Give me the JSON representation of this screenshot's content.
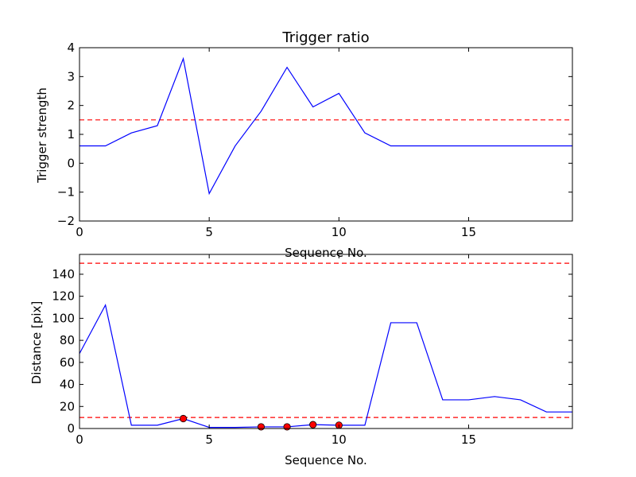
{
  "chart_data": [
    {
      "type": "line",
      "title": "Trigger ratio",
      "xlabel": "Sequence No.",
      "ylabel": "Trigger strength",
      "xlim": [
        0,
        19
      ],
      "ylim": [
        -2,
        4
      ],
      "xticks": [
        0,
        5,
        10,
        15
      ],
      "yticks": [
        -2,
        -1,
        0,
        1,
        2,
        3,
        4
      ],
      "grid": false,
      "series": [
        {
          "color": "#0000ff",
          "x": [
            0,
            1,
            2,
            3,
            4,
            5,
            6,
            7,
            8,
            9,
            10,
            11,
            12,
            13,
            14,
            15,
            16,
            17,
            18,
            19
          ],
          "y": [
            0.6,
            0.6,
            1.05,
            1.3,
            3.62,
            -1.05,
            0.6,
            1.8,
            3.32,
            1.95,
            2.42,
            1.05,
            0.6,
            0.6,
            0.6,
            0.6,
            0.6,
            0.6,
            0.6,
            0.6
          ]
        }
      ],
      "thresholds": [
        {
          "y": 1.5,
          "color": "#ff0000",
          "style": "dashed"
        }
      ]
    },
    {
      "type": "line",
      "title": "",
      "xlabel": "Sequence No.",
      "ylabel": "Distance [pix]",
      "xlim": [
        0,
        19
      ],
      "ylim": [
        0,
        158
      ],
      "xticks": [
        0,
        5,
        10,
        15
      ],
      "yticks": [
        0,
        20,
        40,
        60,
        80,
        100,
        120,
        140
      ],
      "grid": false,
      "series": [
        {
          "color": "#0000ff",
          "x": [
            0,
            1,
            2,
            3,
            4,
            5,
            6,
            7,
            8,
            9,
            10,
            11,
            12,
            13,
            14,
            15,
            16,
            17,
            18,
            19
          ],
          "y": [
            68,
            112,
            3,
            3,
            9,
            1,
            1,
            1.5,
            1.5,
            3.5,
            3,
            3,
            96,
            96,
            26,
            26,
            29,
            26,
            15,
            15
          ]
        }
      ],
      "markers": {
        "color": "#ff0000",
        "x": [
          4,
          7,
          8,
          9,
          10
        ],
        "y": [
          9,
          1.5,
          1.5,
          3.5,
          3
        ]
      },
      "thresholds": [
        {
          "y": 150,
          "color": "#ff0000",
          "style": "dashed"
        },
        {
          "y": 10,
          "color": "#ff0000",
          "style": "dashed"
        }
      ]
    }
  ]
}
